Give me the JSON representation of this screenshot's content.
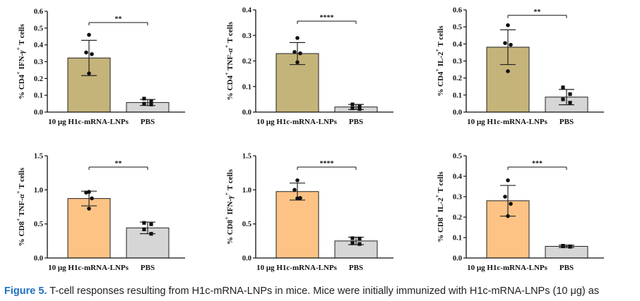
{
  "caption": {
    "figure_label": "Figure 5.",
    "text": " T-cell responses resulting from H1c-mRNA-LNPs in mice. Mice were initially immunized with H1c-mRNA-LNPs (10 μg) as"
  },
  "colors": {
    "cd4_bar": "#c5b47a",
    "cd8_bar": "#fdc385",
    "pbs_bar": "#d6d6d6",
    "caption_label": "#1f6fc0"
  },
  "chart_data": [
    {
      "type": "bar",
      "ylabel_parts": {
        "pre": "% CD4",
        "sup1": "+",
        "mid": " IFN-",
        "greek": "γ",
        "sup2": "+",
        "post": " T cells"
      },
      "categories": [
        "10 μg H1c-mRNA-LNPs",
        "PBS"
      ],
      "values": [
        0.322,
        0.057
      ],
      "errors": [
        0.105,
        0.018
      ],
      "points": [
        [
          0.46,
          0.355,
          0.345,
          0.23
        ],
        [
          0.08,
          0.065,
          0.05,
          0.045
        ]
      ],
      "ylim": [
        0,
        0.6
      ],
      "yticks": [
        "0.0",
        "0.1",
        "0.2",
        "0.3",
        "0.4",
        "0.5",
        "0.6"
      ],
      "significance": "**",
      "group": "cd4"
    },
    {
      "type": "bar",
      "ylabel_parts": {
        "pre": "% CD4",
        "sup1": "+",
        "mid": " TNF-",
        "greek": "α",
        "sup2": "+",
        "post": " T cells"
      },
      "categories": [
        "10 μg H1c-mRNA-LNPs",
        "PBS"
      ],
      "values": [
        0.229,
        0.02
      ],
      "errors": [
        0.043,
        0.01
      ],
      "points": [
        [
          0.29,
          0.235,
          0.23,
          0.195
        ],
        [
          0.03,
          0.022,
          0.015,
          0.012
        ]
      ],
      "ylim": [
        0,
        0.4
      ],
      "yticks": [
        "0.0",
        "0.1",
        "0.2",
        "0.3",
        "0.4"
      ],
      "significance": "****",
      "group": "cd4"
    },
    {
      "type": "bar",
      "ylabel_parts": {
        "pre": "% CD4",
        "sup1": "+",
        "mid": " IL-2",
        "greek": "",
        "sup2": "+",
        "post": " T cells"
      },
      "categories": [
        "10 μg H1c-mRNA-LNPs",
        "PBS"
      ],
      "values": [
        0.381,
        0.088
      ],
      "errors": [
        0.102,
        0.045
      ],
      "points": [
        [
          0.51,
          0.405,
          0.395,
          0.24
        ],
        [
          0.145,
          0.105,
          0.075,
          0.055
        ]
      ],
      "ylim": [
        0,
        0.6
      ],
      "yticks": [
        "0.0",
        "0.1",
        "0.2",
        "0.3",
        "0.4",
        "0.5",
        "0.6"
      ],
      "significance": "**",
      "group": "cd4"
    },
    {
      "type": "bar",
      "ylabel_parts": {
        "pre": "% CD8",
        "sup1": "+",
        "mid": " TNF-",
        "greek": "α",
        "sup2": "+",
        "post": " T cells"
      },
      "categories": [
        "10 μg H1c-mRNA-LNPs",
        "PBS"
      ],
      "values": [
        0.873,
        0.442
      ],
      "errors": [
        0.108,
        0.085
      ],
      "points": [
        [
          0.97,
          0.96,
          0.875,
          0.725
        ],
        [
          0.515,
          0.495,
          0.42,
          0.355
        ]
      ],
      "ylim": [
        0,
        1.5
      ],
      "yticks": [
        "0.0",
        "0.5",
        "1.0",
        "1.5"
      ],
      "significance": "**",
      "group": "cd8"
    },
    {
      "type": "bar",
      "ylabel_parts": {
        "pre": "% CD8",
        "sup1": "+",
        "mid": " IFN-",
        "greek": "γ",
        "sup2": "+",
        "post": " T cells"
      },
      "categories": [
        "10 μg H1c-mRNA-LNPs",
        "PBS"
      ],
      "values": [
        0.975,
        0.25
      ],
      "errors": [
        0.125,
        0.055
      ],
      "points": [
        [
          1.14,
          1.0,
          0.88,
          0.875
        ],
        [
          0.29,
          0.285,
          0.22,
          0.205
        ]
      ],
      "ylim": [
        0,
        1.5
      ],
      "yticks": [
        "0.0",
        "0.5",
        "1.0",
        "1.5"
      ],
      "significance": "****",
      "group": "cd8"
    },
    {
      "type": "bar",
      "ylabel_parts": {
        "pre": "% CD8",
        "sup1": "+",
        "mid": " IL-2",
        "greek": "",
        "sup2": "+",
        "post": " T cells"
      },
      "categories": [
        "10 μg H1c-mRNA-LNPs",
        "PBS"
      ],
      "values": [
        0.28,
        0.057
      ],
      "errors": [
        0.075,
        0.006
      ],
      "points": [
        [
          0.38,
          0.3,
          0.265,
          0.205
        ],
        [
          0.06,
          0.057,
          0.057,
          0.055
        ]
      ],
      "ylim": [
        0,
        0.5
      ],
      "yticks": [
        "0.0",
        "0.1",
        "0.2",
        "0.3",
        "0.4",
        "0.5"
      ],
      "significance": "***",
      "group": "cd8"
    }
  ]
}
